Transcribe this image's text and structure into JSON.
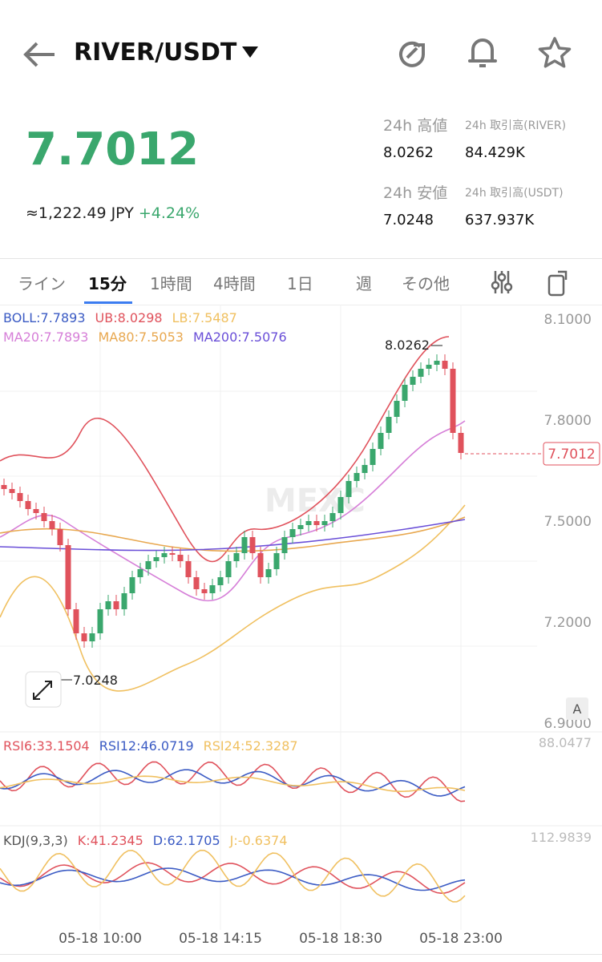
{
  "header": {
    "pair": "RIVER/USDT"
  },
  "ticker": {
    "price": "7.7012",
    "fiat": "≈1,222.49 JPY",
    "change": "+4.24%",
    "stats": [
      {
        "label": "24h 高値",
        "value": "8.0262"
      },
      {
        "label": "24h 取引高(RIVER)",
        "value": "84.429K"
      },
      {
        "label": "24h 安値",
        "value": "7.0248"
      },
      {
        "label": "24h 取引高(USDT)",
        "value": "637.937K"
      }
    ]
  },
  "tabs": [
    "ライン",
    "15分",
    "1時間",
    "4時間",
    "1日",
    "週",
    "その他"
  ],
  "main_chart": {
    "indicators_row1": [
      {
        "text": "BOLL:7.7893",
        "color": "#3b5bc4"
      },
      {
        "text": "UB:8.0298",
        "color": "#e0525c"
      },
      {
        "text": "LB:7.5487",
        "color": "#f0c060"
      }
    ],
    "indicators_row2": [
      {
        "text": "MA20:7.7893",
        "color": "#d67fd8"
      },
      {
        "text": "MA80:7.5053",
        "color": "#e8a850"
      },
      {
        "text": "MA200:7.5076",
        "color": "#6a4fd8"
      }
    ],
    "price_axis": [
      "8.1000",
      "7.8000",
      "7.5000",
      "7.2000",
      "6.9000"
    ],
    "current_price": "7.7012",
    "high_label": "8.0262",
    "low_label": "7.0248",
    "watermark": "MEXC",
    "scale_button": "A"
  },
  "rsi": {
    "labels": [
      {
        "text": "RSI6:33.1504",
        "color": "#e0525c"
      },
      {
        "text": "RSI12:46.0719",
        "color": "#3b5bc4"
      },
      {
        "text": "RSI24:52.3287",
        "color": "#f0c060"
      }
    ],
    "axis": "88.0477"
  },
  "kdj": {
    "labels": [
      {
        "text": "KDJ(9,3,3)",
        "color": "#555"
      },
      {
        "text": "K:41.2345",
        "color": "#e0525c"
      },
      {
        "text": "D:62.1705",
        "color": "#3b5bc4"
      },
      {
        "text": "J:-0.6374",
        "color": "#f0c060"
      }
    ],
    "axis": "112.9839"
  },
  "time_axis": [
    "05-18 10:00",
    "05-18 14:15",
    "05-18 18:30",
    "05-18 23:00"
  ]
}
